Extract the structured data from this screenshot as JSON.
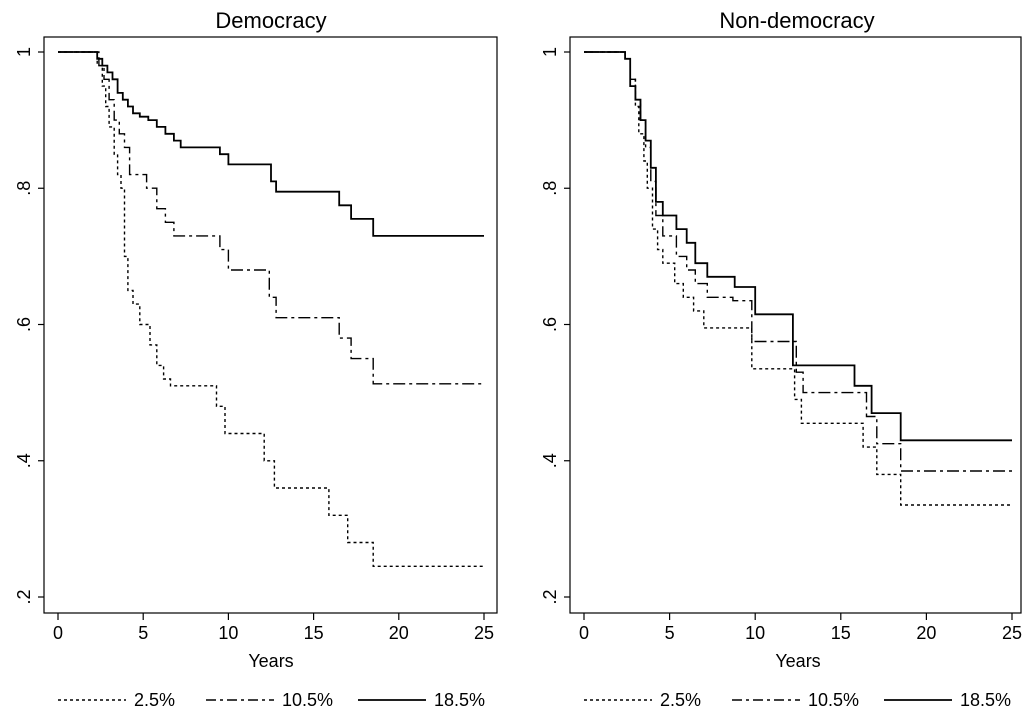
{
  "chart_data": [
    {
      "type": "line",
      "title": "Democracy",
      "xlabel": "Years",
      "ylabel": "",
      "xlim": [
        0,
        25
      ],
      "ylim": [
        0.2,
        1
      ],
      "xticks": [
        0,
        5,
        10,
        15,
        20,
        25
      ],
      "yticks": [
        0.2,
        0.4,
        0.6,
        0.8,
        1
      ],
      "ytick_labels": [
        ".2",
        ".4",
        ".6",
        ".8",
        "1"
      ],
      "grid": false,
      "legend": "bottom",
      "series": [
        {
          "name": "2.5%",
          "style": "dotted",
          "x": [
            0,
            2.3,
            2.6,
            2.8,
            3,
            3.3,
            3.5,
            3.7,
            3.9,
            4.1,
            4.4,
            4.8,
            5.4,
            5.8,
            6.2,
            6.6,
            7,
            9.3,
            9.8,
            10.1,
            12.1,
            12.7,
            15.9,
            17,
            18.5,
            25
          ],
          "y": [
            1,
            0.98,
            0.95,
            0.92,
            0.89,
            0.85,
            0.82,
            0.8,
            0.7,
            0.65,
            0.63,
            0.6,
            0.57,
            0.54,
            0.52,
            0.51,
            0.51,
            0.48,
            0.44,
            0.44,
            0.4,
            0.36,
            0.32,
            0.28,
            0.245,
            0.245
          ]
        },
        {
          "name": "10.5%",
          "style": "dash-dot",
          "x": [
            0,
            2.4,
            2.7,
            3,
            3.3,
            3.6,
            3.9,
            4.2,
            5.2,
            5.8,
            6.3,
            6.8,
            7.2,
            9.5,
            10,
            12,
            12.4,
            12.8,
            15.8,
            16.5,
            17.2,
            18.5,
            25
          ],
          "y": [
            1,
            0.98,
            0.96,
            0.93,
            0.9,
            0.88,
            0.86,
            0.82,
            0.8,
            0.77,
            0.75,
            0.73,
            0.73,
            0.71,
            0.68,
            0.68,
            0.64,
            0.61,
            0.61,
            0.58,
            0.55,
            0.513,
            0.513
          ]
        },
        {
          "name": "18.5%",
          "style": "solid",
          "x": [
            0,
            2.3,
            2.6,
            2.9,
            3.2,
            3.5,
            3.8,
            4.1,
            4.4,
            4.8,
            5.3,
            5.8,
            6.3,
            6.8,
            7.2,
            9.5,
            10,
            12,
            12.5,
            12.8,
            15.7,
            16.5,
            17.2,
            18.5,
            25
          ],
          "y": [
            1,
            0.99,
            0.98,
            0.97,
            0.96,
            0.94,
            0.93,
            0.92,
            0.91,
            0.905,
            0.9,
            0.89,
            0.88,
            0.87,
            0.86,
            0.85,
            0.835,
            0.835,
            0.81,
            0.795,
            0.795,
            0.775,
            0.755,
            0.73,
            0.73
          ]
        }
      ]
    },
    {
      "type": "line",
      "title": "Non-democracy",
      "xlabel": "Years",
      "ylabel": "",
      "xlim": [
        0,
        25
      ],
      "ylim": [
        0.2,
        1
      ],
      "xticks": [
        0,
        5,
        10,
        15,
        20,
        25
      ],
      "yticks": [
        0.2,
        0.4,
        0.6,
        0.8,
        1
      ],
      "ytick_labels": [
        ".2",
        ".4",
        ".6",
        ".8",
        "1"
      ],
      "grid": false,
      "legend": "bottom",
      "series": [
        {
          "name": "2.5%",
          "style": "dotted",
          "x": [
            0,
            2.4,
            2.7,
            3,
            3.2,
            3.5,
            3.7,
            4,
            4.3,
            4.6,
            5.3,
            5.8,
            6.4,
            7,
            8.5,
            9.8,
            11.8,
            12.3,
            12.7,
            15.8,
            16.3,
            17.1,
            18.5,
            25
          ],
          "y": [
            1,
            0.99,
            0.96,
            0.92,
            0.88,
            0.84,
            0.8,
            0.74,
            0.71,
            0.69,
            0.66,
            0.64,
            0.62,
            0.595,
            0.595,
            0.535,
            0.535,
            0.49,
            0.455,
            0.455,
            0.42,
            0.38,
            0.335,
            0.335
          ]
        },
        {
          "name": "10.5%",
          "style": "dash-dot",
          "x": [
            0,
            2.4,
            2.7,
            3,
            3.3,
            3.6,
            3.9,
            4.2,
            4.6,
            5.4,
            6,
            6.5,
            7.2,
            8.7,
            9.8,
            11.9,
            12.4,
            12.8,
            15.8,
            16.5,
            17.1,
            18.5,
            25
          ],
          "y": [
            1,
            0.99,
            0.96,
            0.93,
            0.9,
            0.86,
            0.81,
            0.76,
            0.73,
            0.7,
            0.68,
            0.66,
            0.64,
            0.635,
            0.575,
            0.575,
            0.53,
            0.5,
            0.5,
            0.465,
            0.425,
            0.385,
            0.385
          ]
        },
        {
          "name": "18.5%",
          "style": "solid",
          "x": [
            0,
            2.4,
            2.7,
            3,
            3.3,
            3.6,
            3.9,
            4.2,
            4.6,
            5.4,
            6,
            6.5,
            7.2,
            8.8,
            10,
            11.9,
            12.2,
            15.8,
            16.8,
            17.3,
            18.5,
            25
          ],
          "y": [
            1,
            0.99,
            0.95,
            0.93,
            0.9,
            0.87,
            0.83,
            0.78,
            0.76,
            0.74,
            0.72,
            0.69,
            0.67,
            0.655,
            0.615,
            0.615,
            0.54,
            0.51,
            0.47,
            0.47,
            0.43,
            0.43
          ]
        }
      ]
    }
  ]
}
